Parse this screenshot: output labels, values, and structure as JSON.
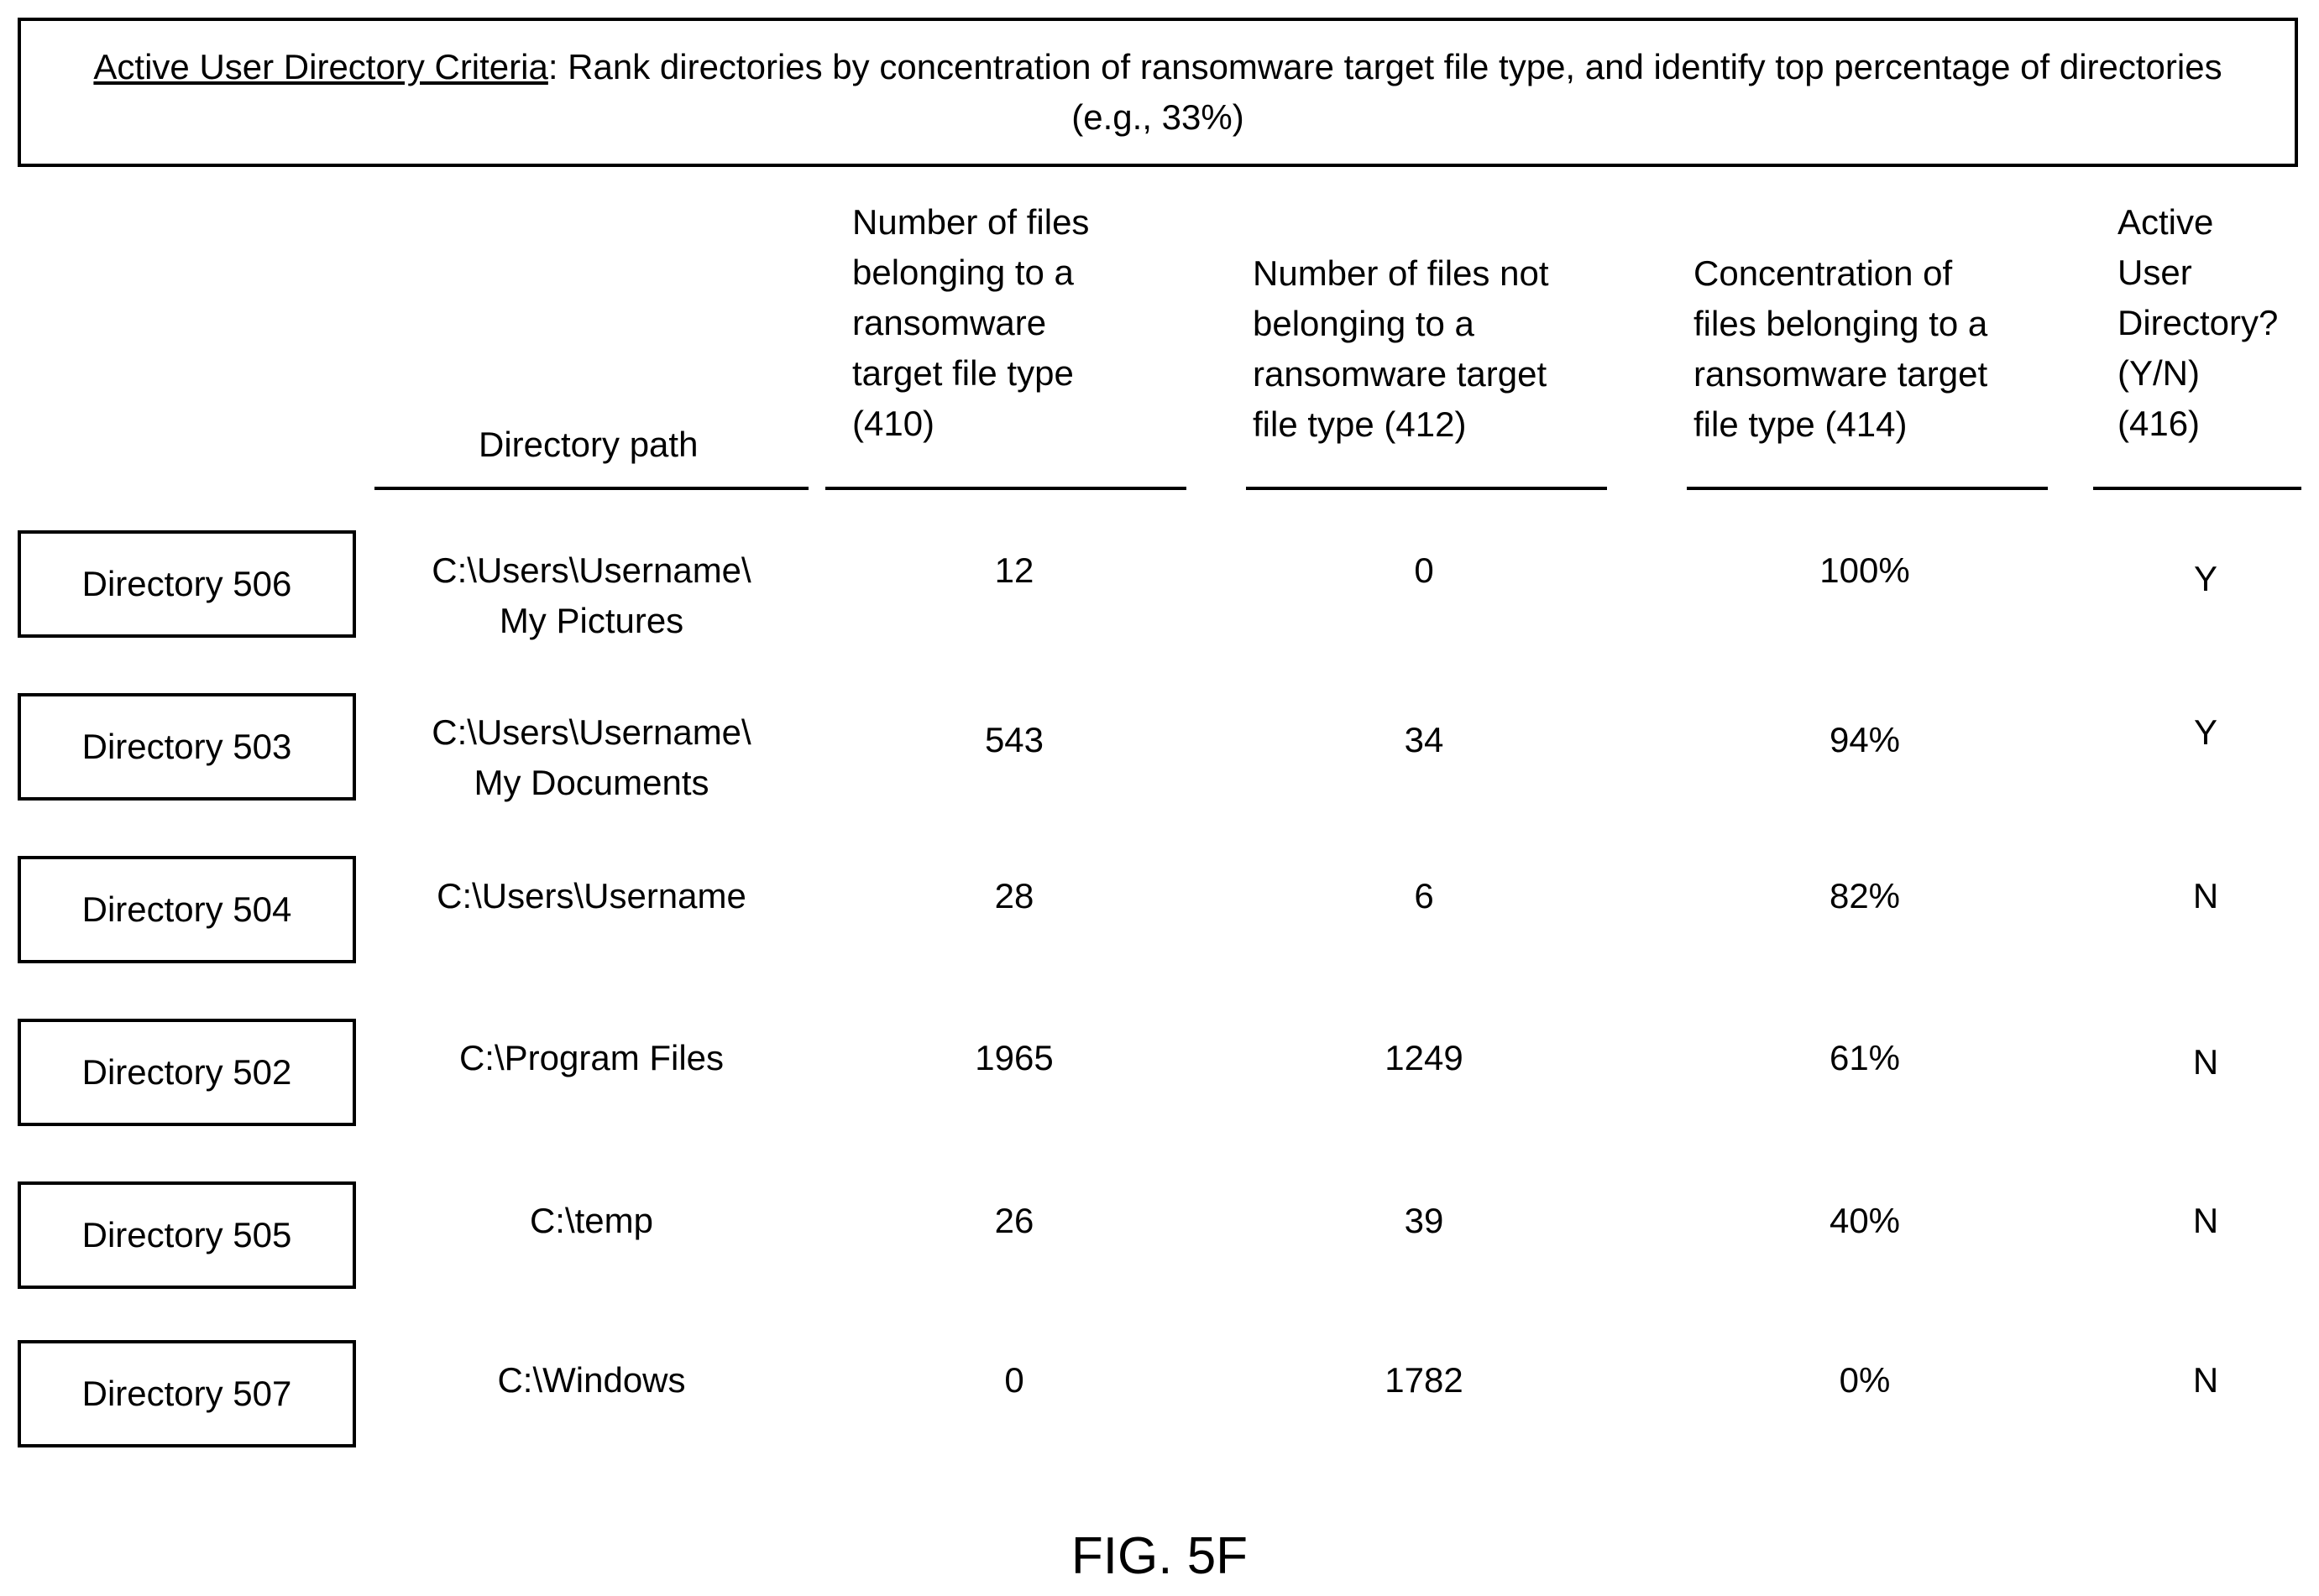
{
  "criteria": {
    "label": "Active User Directory Criteria",
    "text": ": Rank directories by concentration of ransomware target file type, and identify top percentage of directories (e.g., 33%)"
  },
  "columns": {
    "path": "Directory path",
    "target_count": "Number of files\nbelonging to a\nransomware\ntarget file type\n(410)",
    "non_target_count": "Number of files not\nbelonging to a\nransomware target\nfile type (412)",
    "concentration": "Concentration of\nfiles belonging to a\nransomware target\nfile type (414)",
    "active": "Active\nUser\nDirectory?\n(Y/N)\n(416)"
  },
  "rows": [
    {
      "directory": "Directory 506",
      "path": "C:\\Users\\Username\\\nMy Pictures",
      "target": "12",
      "non_target": "0",
      "concentration": "100%",
      "active": "Y"
    },
    {
      "directory": "Directory 503",
      "path": "C:\\Users\\Username\\\nMy Documents",
      "target": "543",
      "non_target": "34",
      "concentration": "94%",
      "active": "Y"
    },
    {
      "directory": "Directory 504",
      "path": "C:\\Users\\Username",
      "target": "28",
      "non_target": "6",
      "concentration": "82%",
      "active": "N"
    },
    {
      "directory": "Directory 502",
      "path": "C:\\Program Files",
      "target": "1965",
      "non_target": "1249",
      "concentration": "61%",
      "active": "N"
    },
    {
      "directory": "Directory 505",
      "path": "C:\\temp",
      "target": "26",
      "non_target": "39",
      "concentration": "40%",
      "active": "N"
    },
    {
      "directory": "Directory 507",
      "path": "C:\\Windows",
      "target": "0",
      "non_target": "1782",
      "concentration": "0%",
      "active": "N"
    }
  ],
  "figure_caption": "FIG. 5F"
}
